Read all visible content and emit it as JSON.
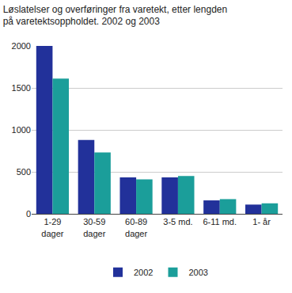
{
  "chart_data": {
    "type": "bar",
    "title": "Løslatelser og overføringer fra varetekt, etter lengden på varetektsoppholdet. 2002 og 2003",
    "categories": [
      "1-29 dager",
      "30-59 dager",
      "60-89 dager",
      "3-5 md.",
      "6-11 md.",
      "1- år"
    ],
    "series": [
      {
        "name": "2002",
        "color": "#22319a",
        "values": [
          2000,
          880,
          435,
          435,
          160,
          110
        ]
      },
      {
        "name": "2003",
        "color": "#1b9e9a",
        "values": [
          1610,
          730,
          410,
          450,
          175,
          125
        ]
      }
    ],
    "ylim": [
      0,
      2000
    ],
    "yticks": [
      0,
      500,
      1000,
      1500,
      2000
    ],
    "grid": true,
    "legend": "bottom"
  }
}
